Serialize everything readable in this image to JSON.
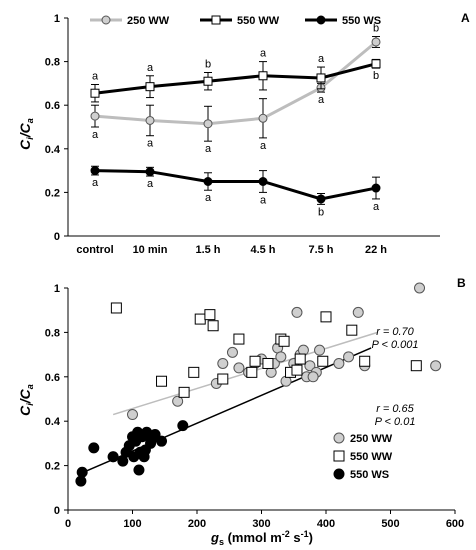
{
  "chart_data": [
    {
      "panel": "A",
      "type": "line",
      "ylabel": "Ci/Ca",
      "ylabel_main": "C",
      "ylabel_sub1": "i",
      "ylabel_sub2": "a",
      "ylim": [
        0,
        1
      ],
      "yticks": [
        "0",
        "0.2",
        "0.4",
        "0.6",
        "0.8",
        "1"
      ],
      "categories": [
        "control",
        "10 min",
        "1.5 h",
        "4.5 h",
        "7.5 h",
        "22 h"
      ],
      "series": [
        {
          "name": "250 WW",
          "color": "#bdbdbd",
          "marker": "circle-gray",
          "values": [
            0.55,
            0.53,
            0.515,
            0.54,
            0.68,
            0.89
          ],
          "err": [
            0.05,
            0.07,
            0.08,
            0.09,
            0.02,
            0.025
          ],
          "labels": [
            "a",
            "a",
            "a",
            "a",
            "a",
            "b"
          ],
          "label_pos": [
            "below",
            "below",
            "below",
            "below",
            "below",
            "above"
          ]
        },
        {
          "name": "550 WW",
          "color": "#000000",
          "marker": "square-white",
          "values": [
            0.655,
            0.685,
            0.71,
            0.735,
            0.725,
            0.79
          ],
          "err": [
            0.04,
            0.05,
            0.04,
            0.065,
            0.05,
            0.02
          ],
          "labels": [
            "a",
            "a",
            "b",
            "a",
            "a",
            "b"
          ],
          "label_pos": [
            "above",
            "above",
            "above",
            "above",
            "above",
            "below"
          ]
        },
        {
          "name": "550 WS",
          "color": "#000000",
          "marker": "circle-black",
          "values": [
            0.3,
            0.295,
            0.25,
            0.25,
            0.17,
            0.22
          ],
          "err": [
            0.02,
            0.02,
            0.04,
            0.05,
            0.025,
            0.05
          ],
          "labels": [
            "a",
            "a",
            "a",
            "a",
            "b",
            "a"
          ],
          "label_pos": [
            "below",
            "below",
            "below",
            "below",
            "below",
            "below"
          ]
        }
      ]
    },
    {
      "panel": "B",
      "type": "scatter",
      "ylabel": "Ci/Ca",
      "ylabel_main": "C",
      "ylabel_sub1": "i",
      "ylabel_sub2": "a",
      "xlabel_pre": "g",
      "xlabel_sub": "s",
      "xlabel_unit": " (mmol m",
      "xlabel_exp1": "-2",
      "xlabel_mid": " s",
      "xlabel_exp2": "-1",
      "xlabel_end": ")",
      "xlim": [
        0,
        600
      ],
      "ylim": [
        0,
        1
      ],
      "xticks": [
        "0",
        "100",
        "200",
        "300",
        "400",
        "500",
        "600"
      ],
      "yticks": [
        "0",
        "0.2",
        "0.4",
        "0.6",
        "0.8",
        "1"
      ],
      "series": [
        {
          "name": "250 WW",
          "marker": "circle-gray",
          "points": [
            [
              70,
              0.24
            ],
            [
              100,
              0.43
            ],
            [
              170,
              0.49
            ],
            [
              230,
              0.57
            ],
            [
              240,
              0.66
            ],
            [
              255,
              0.71
            ],
            [
              265,
              0.64
            ],
            [
              290,
              0.66
            ],
            [
              300,
              0.68
            ],
            [
              315,
              0.62
            ],
            [
              320,
              0.66
            ],
            [
              325,
              0.73
            ],
            [
              330,
              0.69
            ],
            [
              338,
              0.58
            ],
            [
              350,
              0.66
            ],
            [
              355,
              0.89
            ],
            [
              360,
              0.7
            ],
            [
              365,
              0.72
            ],
            [
              370,
              0.6
            ],
            [
              375,
              0.65
            ],
            [
              385,
              0.62
            ],
            [
              390,
              0.72
            ],
            [
              420,
              0.66
            ],
            [
              435,
              0.69
            ],
            [
              450,
              0.89
            ],
            [
              460,
              0.65
            ],
            [
              545,
              1.0
            ],
            [
              570,
              0.65
            ],
            [
              280,
              0.62
            ],
            [
              345,
              0.62
            ],
            [
              380,
              0.6
            ]
          ]
        },
        {
          "name": "550 WW",
          "marker": "square-white",
          "points": [
            [
              75,
              0.91
            ],
            [
              145,
              0.58
            ],
            [
              180,
              0.53
            ],
            [
              195,
              0.62
            ],
            [
              205,
              0.86
            ],
            [
              220,
              0.88
            ],
            [
              225,
              0.83
            ],
            [
              240,
              0.59
            ],
            [
              265,
              0.77
            ],
            [
              285,
              0.62
            ],
            [
              290,
              0.67
            ],
            [
              310,
              0.66
            ],
            [
              330,
              0.77
            ],
            [
              335,
              0.76
            ],
            [
              345,
              0.62
            ],
            [
              355,
              0.63
            ],
            [
              360,
              0.68
            ],
            [
              395,
              0.67
            ],
            [
              400,
              0.87
            ],
            [
              440,
              0.81
            ],
            [
              460,
              0.67
            ],
            [
              540,
              0.65
            ]
          ]
        },
        {
          "name": "550 WS",
          "marker": "circle-black",
          "points": [
            [
              20,
              0.13
            ],
            [
              22,
              0.17
            ],
            [
              40,
              0.28
            ],
            [
              70,
              0.24
            ],
            [
              85,
              0.22
            ],
            [
              90,
              0.26
            ],
            [
              95,
              0.29
            ],
            [
              100,
              0.33
            ],
            [
              102,
              0.24
            ],
            [
              105,
              0.31
            ],
            [
              108,
              0.35
            ],
            [
              110,
              0.18
            ],
            [
              112,
              0.26
            ],
            [
              115,
              0.33
            ],
            [
              118,
              0.24
            ],
            [
              120,
              0.27
            ],
            [
              122,
              0.35
            ],
            [
              128,
              0.3
            ],
            [
              130,
              0.32
            ],
            [
              135,
              0.34
            ],
            [
              145,
              0.31
            ],
            [
              178,
              0.38
            ]
          ]
        }
      ],
      "trendlines": [
        {
          "series": "250 WW",
          "color": "#bdbdbd",
          "x": [
            70,
            480
          ],
          "y": [
            0.43,
            0.8
          ],
          "r": "r = 0.70",
          "p": "P < 0.001"
        },
        {
          "series": "550 WS",
          "color": "#000000",
          "x": [
            20,
            470
          ],
          "y": [
            0.165,
            0.73
          ],
          "r": "r = 0.65",
          "p": "P < 0.01"
        }
      ]
    }
  ]
}
